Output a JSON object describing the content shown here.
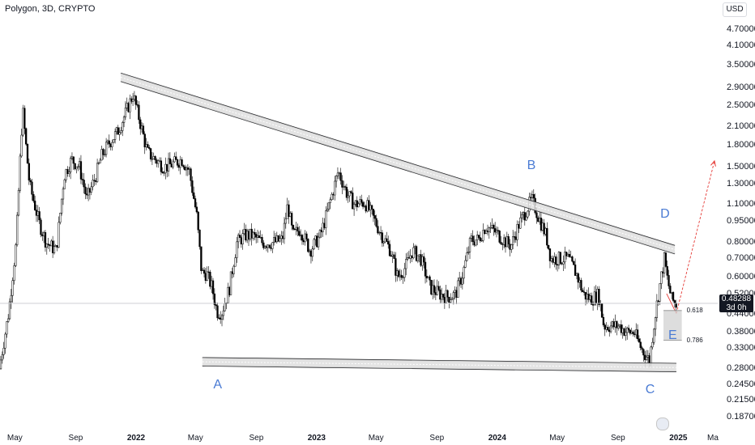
{
  "header": {
    "title": "Polygon, 3D, CRYPTO",
    "currency": "USD"
  },
  "price_tag": {
    "price": "0.48288",
    "countdown": "3d 0h"
  },
  "points": [
    {
      "label": "A",
      "date": "2022-06-15",
      "price": 0.265
    },
    {
      "label": "B",
      "date": "2024-03-10",
      "price": 1.36
    },
    {
      "label": "C",
      "date": "2024-11-05",
      "price": 0.258
    },
    {
      "label": "D",
      "date": "2024-12-05",
      "price": 0.92
    },
    {
      "label": "E",
      "date": "2024-12-05",
      "price": 0.37
    }
  ],
  "fib_levels": [
    {
      "label": "0.618",
      "price": 0.455
    },
    {
      "label": "0.786",
      "price": 0.355
    }
  ],
  "chart_data": {
    "type": "candlestick",
    "title": "Polygon, 3D, CRYPTO",
    "y_scale": "log",
    "ylim": [
      0.17,
      5.2
    ],
    "xlim": [
      "2021-04-01",
      "2025-03-20"
    ],
    "y_ticks": [
      "4.70000",
      "4.10000",
      "3.50000",
      "2.90000",
      "2.50000",
      "2.10000",
      "1.80000",
      "1.50000",
      "1.30000",
      "1.10000",
      "0.95000",
      "0.80000",
      "0.70000",
      "0.60000",
      "0.52000",
      "0.44000",
      "0.38000",
      "0.33000",
      "0.28000",
      "0.24500",
      "0.21500",
      "0.18700"
    ],
    "x_ticks": [
      {
        "label": "May",
        "date": "2021-05-01",
        "bold": false
      },
      {
        "label": "Sep",
        "date": "2021-09-01",
        "bold": false
      },
      {
        "label": "2022",
        "date": "2022-01-01",
        "bold": true
      },
      {
        "label": "May",
        "date": "2022-05-01",
        "bold": false
      },
      {
        "label": "Sep",
        "date": "2022-09-01",
        "bold": false
      },
      {
        "label": "2023",
        "date": "2023-01-01",
        "bold": true
      },
      {
        "label": "May",
        "date": "2023-05-01",
        "bold": false
      },
      {
        "label": "Sep",
        "date": "2023-09-01",
        "bold": false
      },
      {
        "label": "2024",
        "date": "2024-01-01",
        "bold": true
      },
      {
        "label": "May",
        "date": "2024-05-01",
        "bold": false
      },
      {
        "label": "Sep",
        "date": "2024-09-01",
        "bold": false
      },
      {
        "label": "2025",
        "date": "2025-01-01",
        "bold": true
      },
      {
        "label": "Ma",
        "date": "2025-05-01",
        "bold": false
      }
    ],
    "anchors": [
      [
        "2021-04-01",
        0.28
      ],
      [
        "2021-04-20",
        0.45
      ],
      [
        "2021-05-05",
        0.8
      ],
      [
        "2021-05-18",
        2.45
      ],
      [
        "2021-06-01",
        1.3
      ],
      [
        "2021-06-20",
        0.95
      ],
      [
        "2021-07-05",
        0.8
      ],
      [
        "2021-07-25",
        0.75
      ],
      [
        "2021-08-10",
        1.4
      ],
      [
        "2021-08-25",
        1.6
      ],
      [
        "2021-09-10",
        1.5
      ],
      [
        "2021-09-25",
        1.15
      ],
      [
        "2021-10-10",
        1.35
      ],
      [
        "2021-10-25",
        1.65
      ],
      [
        "2021-11-10",
        1.85
      ],
      [
        "2021-11-25",
        2.0
      ],
      [
        "2021-12-10",
        2.3
      ],
      [
        "2021-12-27",
        2.75
      ],
      [
        "2022-01-10",
        2.2
      ],
      [
        "2022-01-25",
        1.7
      ],
      [
        "2022-02-10",
        1.6
      ],
      [
        "2022-03-01",
        1.5
      ],
      [
        "2022-03-20",
        1.55
      ],
      [
        "2022-04-05",
        1.6
      ],
      [
        "2022-04-20",
        1.45
      ],
      [
        "2022-05-05",
        1.0
      ],
      [
        "2022-05-15",
        0.62
      ],
      [
        "2022-05-25",
        0.62
      ],
      [
        "2022-06-05",
        0.55
      ],
      [
        "2022-06-15",
        0.45
      ],
      [
        "2022-06-25",
        0.45
      ],
      [
        "2022-07-10",
        0.55
      ],
      [
        "2022-07-25",
        0.8
      ],
      [
        "2022-08-10",
        0.85
      ],
      [
        "2022-08-25",
        0.85
      ],
      [
        "2022-09-15",
        0.8
      ],
      [
        "2022-10-05",
        0.8
      ],
      [
        "2022-10-25",
        0.82
      ],
      [
        "2022-11-05",
        1.1
      ],
      [
        "2022-11-15",
        0.85
      ],
      [
        "2022-11-30",
        0.9
      ],
      [
        "2022-12-20",
        0.75
      ],
      [
        "2023-01-10",
        0.85
      ],
      [
        "2023-01-25",
        1.05
      ],
      [
        "2023-02-15",
        1.45
      ],
      [
        "2023-03-05",
        1.2
      ],
      [
        "2023-03-20",
        1.1
      ],
      [
        "2023-04-10",
        1.12
      ],
      [
        "2023-04-25",
        1.0
      ],
      [
        "2023-05-10",
        0.88
      ],
      [
        "2023-06-01",
        0.75
      ],
      [
        "2023-06-15",
        0.6
      ],
      [
        "2023-06-30",
        0.65
      ],
      [
        "2023-07-15",
        0.75
      ],
      [
        "2023-08-01",
        0.7
      ],
      [
        "2023-08-20",
        0.55
      ],
      [
        "2023-09-10",
        0.52
      ],
      [
        "2023-09-25",
        0.51
      ],
      [
        "2023-10-10",
        0.52
      ],
      [
        "2023-10-25",
        0.62
      ],
      [
        "2023-11-10",
        0.82
      ],
      [
        "2023-11-25",
        0.82
      ],
      [
        "2023-12-10",
        0.92
      ],
      [
        "2023-12-28",
        0.88
      ],
      [
        "2024-01-15",
        0.82
      ],
      [
        "2024-01-30",
        0.78
      ],
      [
        "2024-02-15",
        0.93
      ],
      [
        "2024-03-01",
        1.05
      ],
      [
        "2024-03-12",
        1.15
      ],
      [
        "2024-03-25",
        1.0
      ],
      [
        "2024-04-10",
        0.85
      ],
      [
        "2024-04-20",
        0.7
      ],
      [
        "2024-05-05",
        0.7
      ],
      [
        "2024-05-25",
        0.7
      ],
      [
        "2024-06-10",
        0.62
      ],
      [
        "2024-06-25",
        0.52
      ],
      [
        "2024-07-10",
        0.5
      ],
      [
        "2024-07-25",
        0.52
      ],
      [
        "2024-08-05",
        0.4
      ],
      [
        "2024-08-20",
        0.4
      ],
      [
        "2024-09-05",
        0.4
      ],
      [
        "2024-09-20",
        0.38
      ],
      [
        "2024-10-05",
        0.38
      ],
      [
        "2024-10-20",
        0.33
      ],
      [
        "2024-11-05",
        0.3
      ],
      [
        "2024-11-15",
        0.42
      ],
      [
        "2024-11-25",
        0.55
      ],
      [
        "2024-12-05",
        0.7
      ],
      [
        "2024-12-12",
        0.58
      ],
      [
        "2024-12-20",
        0.5
      ],
      [
        "2024-12-28",
        0.48
      ]
    ]
  },
  "overlays": {
    "upper_channel": [
      [
        "2021-12-01",
        3.17
      ],
      [
        "2024-12-25",
        0.755
      ]
    ],
    "lower_channel": [
      [
        "2022-05-15",
        0.297
      ],
      [
        "2024-12-28",
        0.283
      ]
    ],
    "projection_arrow": [
      [
        "2024-12-28",
        0.475
      ],
      [
        "2025-03-15",
        1.58
      ]
    ],
    "current_price_line": 0.48288,
    "e_zone": {
      "from": "2024-12-02",
      "to": "2025-01-08",
      "top": 0.455,
      "bottom": 0.355
    }
  }
}
